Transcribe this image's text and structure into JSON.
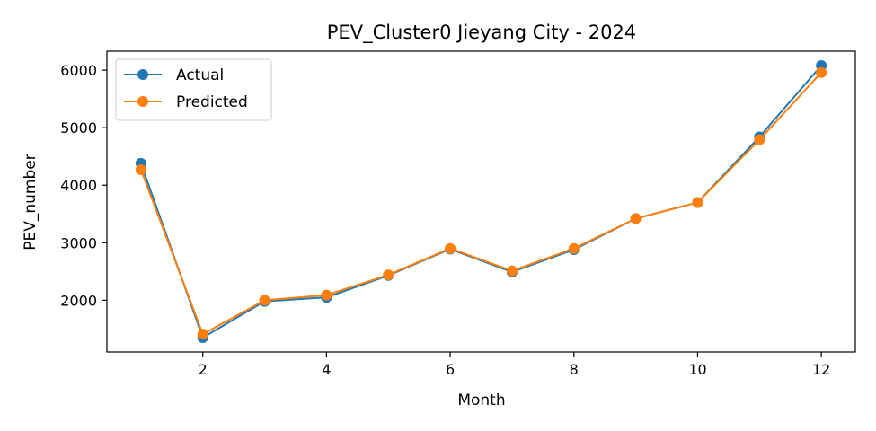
{
  "chart_data": {
    "type": "line",
    "title": "PEV_Cluster0 Jieyang City - 2024",
    "xlabel": "Month",
    "ylabel": "PEV_number",
    "x": [
      1,
      2,
      3,
      4,
      5,
      6,
      7,
      8,
      9,
      10,
      11,
      12
    ],
    "xlim": [
      0.45,
      12.55
    ],
    "ylim": [
      1100,
      6330
    ],
    "xticks": [
      2,
      4,
      6,
      8,
      10,
      12
    ],
    "yticks": [
      2000,
      3000,
      4000,
      5000,
      6000
    ],
    "grid": false,
    "legend_position": "top-left",
    "series": [
      {
        "name": "Actual",
        "color": "#1f77b4",
        "values": [
          4380,
          1350,
          1980,
          2050,
          2430,
          2890,
          2490,
          2880,
          3420,
          3700,
          4840,
          6080
        ]
      },
      {
        "name": "Predicted",
        "color": "#ff7f0e",
        "values": [
          4270,
          1410,
          2000,
          2090,
          2440,
          2900,
          2510,
          2900,
          3420,
          3700,
          4790,
          5960
        ]
      }
    ]
  }
}
